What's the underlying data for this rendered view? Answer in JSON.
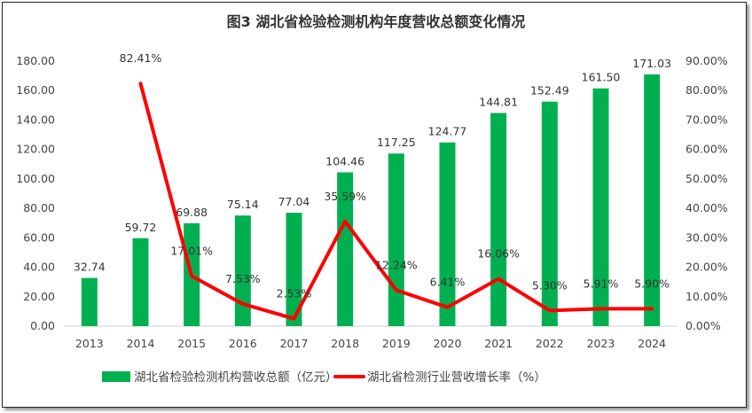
{
  "chart_data": {
    "type": "bar+line",
    "title": "图3 湖北省检验检测机构年度营收总额变化情况",
    "categories": [
      "2013",
      "2014",
      "2015",
      "2016",
      "2017",
      "2018",
      "2019",
      "2020",
      "2021",
      "2022",
      "2023",
      "2024"
    ],
    "series": [
      {
        "name": "湖北省检验检测机构营收总额（亿元）",
        "type": "bar",
        "axis": "left",
        "color": "#00b050",
        "values": [
          32.74,
          59.72,
          69.88,
          75.14,
          77.04,
          104.46,
          117.25,
          124.77,
          144.81,
          152.49,
          161.5,
          171.03
        ],
        "labels": [
          "32.74",
          "59.72",
          "69.88",
          "75.14",
          "77.04",
          "104.46",
          "117.25",
          "124.77",
          "144.81",
          "152.49",
          "161.50",
          "171.03"
        ]
      },
      {
        "name": "湖北省检测行业营收增长率（%）",
        "type": "line",
        "axis": "right",
        "color": "#ff0000",
        "values": [
          null,
          82.41,
          17.01,
          7.53,
          2.53,
          35.59,
          12.24,
          6.41,
          16.06,
          5.3,
          5.91,
          5.9
        ],
        "labels": [
          "",
          "82.41%",
          "17.01%",
          "7.53%",
          "2.53%",
          "35.59%",
          "12.24%",
          "6.41%",
          "16.06%",
          "5.30%",
          "5.91%",
          "5.90%"
        ]
      }
    ],
    "y_left": {
      "range": [
        0,
        180
      ],
      "ticks": [
        "0.00",
        "20.00",
        "40.00",
        "60.00",
        "80.00",
        "100.00",
        "120.00",
        "140.00",
        "160.00",
        "180.00"
      ]
    },
    "y_right": {
      "range": [
        0,
        90
      ],
      "ticks": [
        "0.00%",
        "10.00%",
        "20.00%",
        "30.00%",
        "40.00%",
        "50.00%",
        "60.00%",
        "70.00%",
        "80.00%",
        "90.00%"
      ]
    },
    "grid": false,
    "legend": "bottom"
  }
}
